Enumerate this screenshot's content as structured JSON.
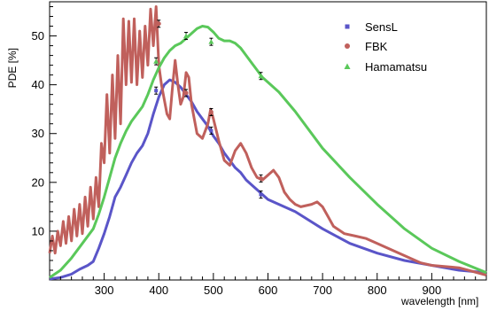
{
  "chart_data": {
    "type": "line",
    "title": "",
    "xlabel": "wavelength [nm]",
    "ylabel": "PDE [%]",
    "xlim": [
      200,
      1000
    ],
    "ylim": [
      0,
      57
    ],
    "x_ticks": [
      300,
      400,
      500,
      600,
      700,
      800,
      900
    ],
    "y_ticks": [
      10,
      20,
      30,
      40,
      50
    ],
    "grid": false,
    "legend_position": "top-right",
    "series": [
      {
        "name": "SensL",
        "color": "#5a55c8",
        "marker": "square",
        "points": [
          [
            200,
            0.2
          ],
          [
            220,
            0.5
          ],
          [
            240,
            1.2
          ],
          [
            255,
            2.2
          ],
          [
            270,
            3.0
          ],
          [
            280,
            3.8
          ],
          [
            290,
            6.5
          ],
          [
            300,
            9.5
          ],
          [
            310,
            13.0
          ],
          [
            320,
            17.0
          ],
          [
            330,
            19.0
          ],
          [
            340,
            21.5
          ],
          [
            350,
            24.0
          ],
          [
            360,
            26.0
          ],
          [
            370,
            27.5
          ],
          [
            380,
            30.0
          ],
          [
            390,
            34.0
          ],
          [
            400,
            37.5
          ],
          [
            410,
            40.0
          ],
          [
            420,
            41.0
          ],
          [
            430,
            40.5
          ],
          [
            440,
            39.5
          ],
          [
            450,
            38.0
          ],
          [
            460,
            36.5
          ],
          [
            470,
            34.5
          ],
          [
            480,
            33.0
          ],
          [
            490,
            31.5
          ],
          [
            500,
            29.5
          ],
          [
            510,
            28.0
          ],
          [
            520,
            26.0
          ],
          [
            530,
            24.5
          ],
          [
            540,
            23.0
          ],
          [
            550,
            22.0
          ],
          [
            560,
            20.5
          ],
          [
            570,
            19.5
          ],
          [
            580,
            18.5
          ],
          [
            590,
            17.5
          ],
          [
            600,
            16.5
          ],
          [
            620,
            15.5
          ],
          [
            650,
            14.0
          ],
          [
            700,
            10.5
          ],
          [
            750,
            7.5
          ],
          [
            800,
            5.5
          ],
          [
            850,
            4.0
          ],
          [
            900,
            3.0
          ],
          [
            950,
            2.0
          ],
          [
            1000,
            1.5
          ]
        ],
        "measured": [
          [
            395,
            38.8
          ],
          [
            450,
            38.3
          ],
          [
            496,
            30.6
          ],
          [
            587,
            17.5
          ]
        ]
      },
      {
        "name": "FBK",
        "color": "#c0605c",
        "marker": "circle",
        "points": [
          [
            200,
            5.5
          ],
          [
            205,
            9.0
          ],
          [
            210,
            5.5
          ],
          [
            215,
            10.0
          ],
          [
            220,
            7.0
          ],
          [
            225,
            12.0
          ],
          [
            230,
            7.5
          ],
          [
            235,
            13.0
          ],
          [
            240,
            8.0
          ],
          [
            245,
            14.5
          ],
          [
            250,
            9.0
          ],
          [
            255,
            15.5
          ],
          [
            260,
            9.5
          ],
          [
            265,
            17.0
          ],
          [
            270,
            11.0
          ],
          [
            275,
            19.0
          ],
          [
            280,
            12.5
          ],
          [
            285,
            21.0
          ],
          [
            290,
            15.0
          ],
          [
            295,
            28.0
          ],
          [
            300,
            24.0
          ],
          [
            305,
            38.0
          ],
          [
            310,
            26.0
          ],
          [
            315,
            42.0
          ],
          [
            320,
            29.0
          ],
          [
            325,
            46.0
          ],
          [
            330,
            32.0
          ],
          [
            335,
            53.5
          ],
          [
            340,
            40.0
          ],
          [
            345,
            53.0
          ],
          [
            350,
            40.5
          ],
          [
            355,
            53.5
          ],
          [
            360,
            40.0
          ],
          [
            365,
            51.0
          ],
          [
            370,
            41.5
          ],
          [
            375,
            52.0
          ],
          [
            380,
            44.0
          ],
          [
            385,
            55.5
          ],
          [
            390,
            48.0
          ],
          [
            395,
            56.0
          ],
          [
            400,
            44.0
          ],
          [
            405,
            40.0
          ],
          [
            410,
            37.0
          ],
          [
            415,
            34.0
          ],
          [
            420,
            33.0
          ],
          [
            425,
            39.5
          ],
          [
            430,
            45.0
          ],
          [
            435,
            40.0
          ],
          [
            440,
            36.0
          ],
          [
            445,
            37.5
          ],
          [
            450,
            42.5
          ],
          [
            455,
            41.5
          ],
          [
            460,
            36.0
          ],
          [
            470,
            30.0
          ],
          [
            480,
            29.0
          ],
          [
            490,
            32.0
          ],
          [
            495,
            35.0
          ],
          [
            500,
            33.0
          ],
          [
            510,
            28.5
          ],
          [
            520,
            24.5
          ],
          [
            530,
            23.5
          ],
          [
            540,
            26.5
          ],
          [
            550,
            28.0
          ],
          [
            560,
            26.0
          ],
          [
            570,
            23.0
          ],
          [
            580,
            21.0
          ],
          [
            590,
            20.5
          ],
          [
            600,
            21.5
          ],
          [
            610,
            22.5
          ],
          [
            620,
            21.0
          ],
          [
            630,
            18.0
          ],
          [
            640,
            16.5
          ],
          [
            650,
            15.5
          ],
          [
            660,
            15.0
          ],
          [
            680,
            15.5
          ],
          [
            690,
            16.0
          ],
          [
            700,
            15.0
          ],
          [
            710,
            13.0
          ],
          [
            720,
            11.0
          ],
          [
            740,
            9.5
          ],
          [
            760,
            9.0
          ],
          [
            780,
            8.5
          ],
          [
            800,
            7.5
          ],
          [
            820,
            6.5
          ],
          [
            840,
            5.5
          ],
          [
            860,
            4.5
          ],
          [
            880,
            3.5
          ],
          [
            900,
            3.0
          ],
          [
            950,
            2.5
          ],
          [
            1000,
            1.0
          ]
        ],
        "measured": [
          [
            400,
            52.5
          ],
          [
            450,
            38.3
          ],
          [
            496,
            34.4
          ],
          [
            587,
            20.8
          ]
        ]
      },
      {
        "name": "Hamamatsu",
        "color": "#5ac85a",
        "marker": "triangle",
        "points": [
          [
            200,
            0.5
          ],
          [
            220,
            2.0
          ],
          [
            240,
            4.5
          ],
          [
            260,
            7.5
          ],
          [
            280,
            10.5
          ],
          [
            290,
            13.5
          ],
          [
            300,
            17.0
          ],
          [
            310,
            21.0
          ],
          [
            320,
            25.0
          ],
          [
            330,
            28.0
          ],
          [
            340,
            30.5
          ],
          [
            350,
            32.5
          ],
          [
            360,
            34.0
          ],
          [
            370,
            35.5
          ],
          [
            380,
            38.0
          ],
          [
            390,
            41.0
          ],
          [
            400,
            43.5
          ],
          [
            410,
            45.5
          ],
          [
            420,
            47.0
          ],
          [
            430,
            48.0
          ],
          [
            440,
            48.5
          ],
          [
            450,
            49.5
          ],
          [
            460,
            50.5
          ],
          [
            470,
            51.5
          ],
          [
            480,
            52.0
          ],
          [
            490,
            51.8
          ],
          [
            500,
            50.8
          ],
          [
            510,
            49.5
          ],
          [
            520,
            49.0
          ],
          [
            530,
            49.0
          ],
          [
            540,
            48.5
          ],
          [
            550,
            47.5
          ],
          [
            560,
            46.0
          ],
          [
            570,
            44.5
          ],
          [
            580,
            43.0
          ],
          [
            590,
            41.5
          ],
          [
            600,
            40.5
          ],
          [
            620,
            38.5
          ],
          [
            650,
            34.5
          ],
          [
            700,
            27.0
          ],
          [
            750,
            21.0
          ],
          [
            800,
            15.5
          ],
          [
            850,
            10.5
          ],
          [
            900,
            6.5
          ],
          [
            950,
            3.8
          ],
          [
            1000,
            1.5
          ]
        ],
        "measured": [
          [
            395,
            44.8
          ],
          [
            450,
            50.0
          ],
          [
            496,
            48.8
          ],
          [
            587,
            41.8
          ]
        ]
      }
    ]
  }
}
